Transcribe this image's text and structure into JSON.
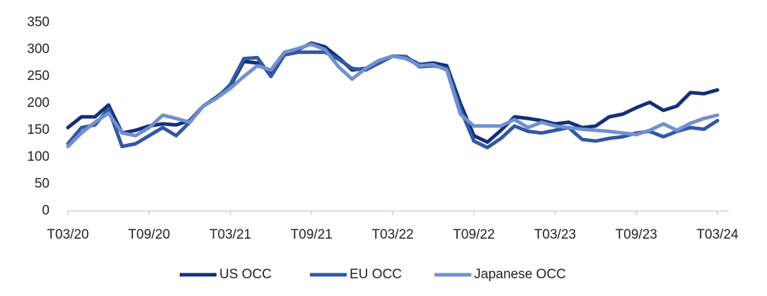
{
  "chart_data": {
    "type": "line",
    "categories": [
      "T03/20",
      null,
      null,
      null,
      null,
      null,
      "T09/20",
      null,
      null,
      null,
      null,
      null,
      "T03/21",
      null,
      null,
      null,
      null,
      null,
      "T09/21",
      null,
      null,
      null,
      null,
      null,
      "T03/22",
      null,
      null,
      null,
      null,
      null,
      "T09/22",
      null,
      null,
      null,
      null,
      null,
      "T03/23",
      null,
      null,
      null,
      null,
      null,
      "T09/23",
      null,
      null,
      null,
      null,
      null,
      "T03/24"
    ],
    "series": [
      {
        "name": "US OCC",
        "color": "#122f7a",
        "values": [
          155,
          175,
          175,
          197,
          145,
          150,
          158,
          162,
          160,
          168,
          195,
          212,
          232,
          278,
          275,
          258,
          292,
          300,
          312,
          305,
          285,
          262,
          265,
          275,
          288,
          285,
          272,
          275,
          270,
          200,
          140,
          128,
          150,
          175,
          172,
          168,
          162,
          165,
          155,
          158,
          175,
          180,
          192,
          202,
          187,
          195,
          220,
          218,
          225
        ]
      },
      {
        "name": "EU OCC",
        "color": "#3157a6",
        "values": [
          125,
          155,
          160,
          190,
          120,
          125,
          140,
          155,
          140,
          165,
          195,
          210,
          235,
          283,
          285,
          250,
          290,
          295,
          295,
          295,
          282,
          265,
          262,
          275,
          288,
          287,
          268,
          270,
          265,
          190,
          130,
          118,
          135,
          158,
          148,
          145,
          150,
          155,
          133,
          130,
          135,
          138,
          145,
          148,
          138,
          148,
          155,
          152,
          168
        ]
      },
      {
        "name": "Japanese OCC",
        "color": "#7190cf",
        "values": [
          120,
          145,
          165,
          182,
          145,
          140,
          155,
          178,
          172,
          165,
          195,
          210,
          228,
          250,
          270,
          262,
          295,
          302,
          310,
          300,
          268,
          245,
          265,
          280,
          288,
          283,
          270,
          272,
          262,
          180,
          158,
          158,
          158,
          170,
          155,
          165,
          158,
          155,
          152,
          150,
          148,
          145,
          142,
          150,
          162,
          150,
          163,
          172,
          178
        ]
      }
    ],
    "ylim": [
      0,
      350
    ],
    "yticks": [
      0,
      50,
      100,
      150,
      200,
      250,
      300,
      350
    ],
    "grid": false,
    "legend": "bottom"
  }
}
